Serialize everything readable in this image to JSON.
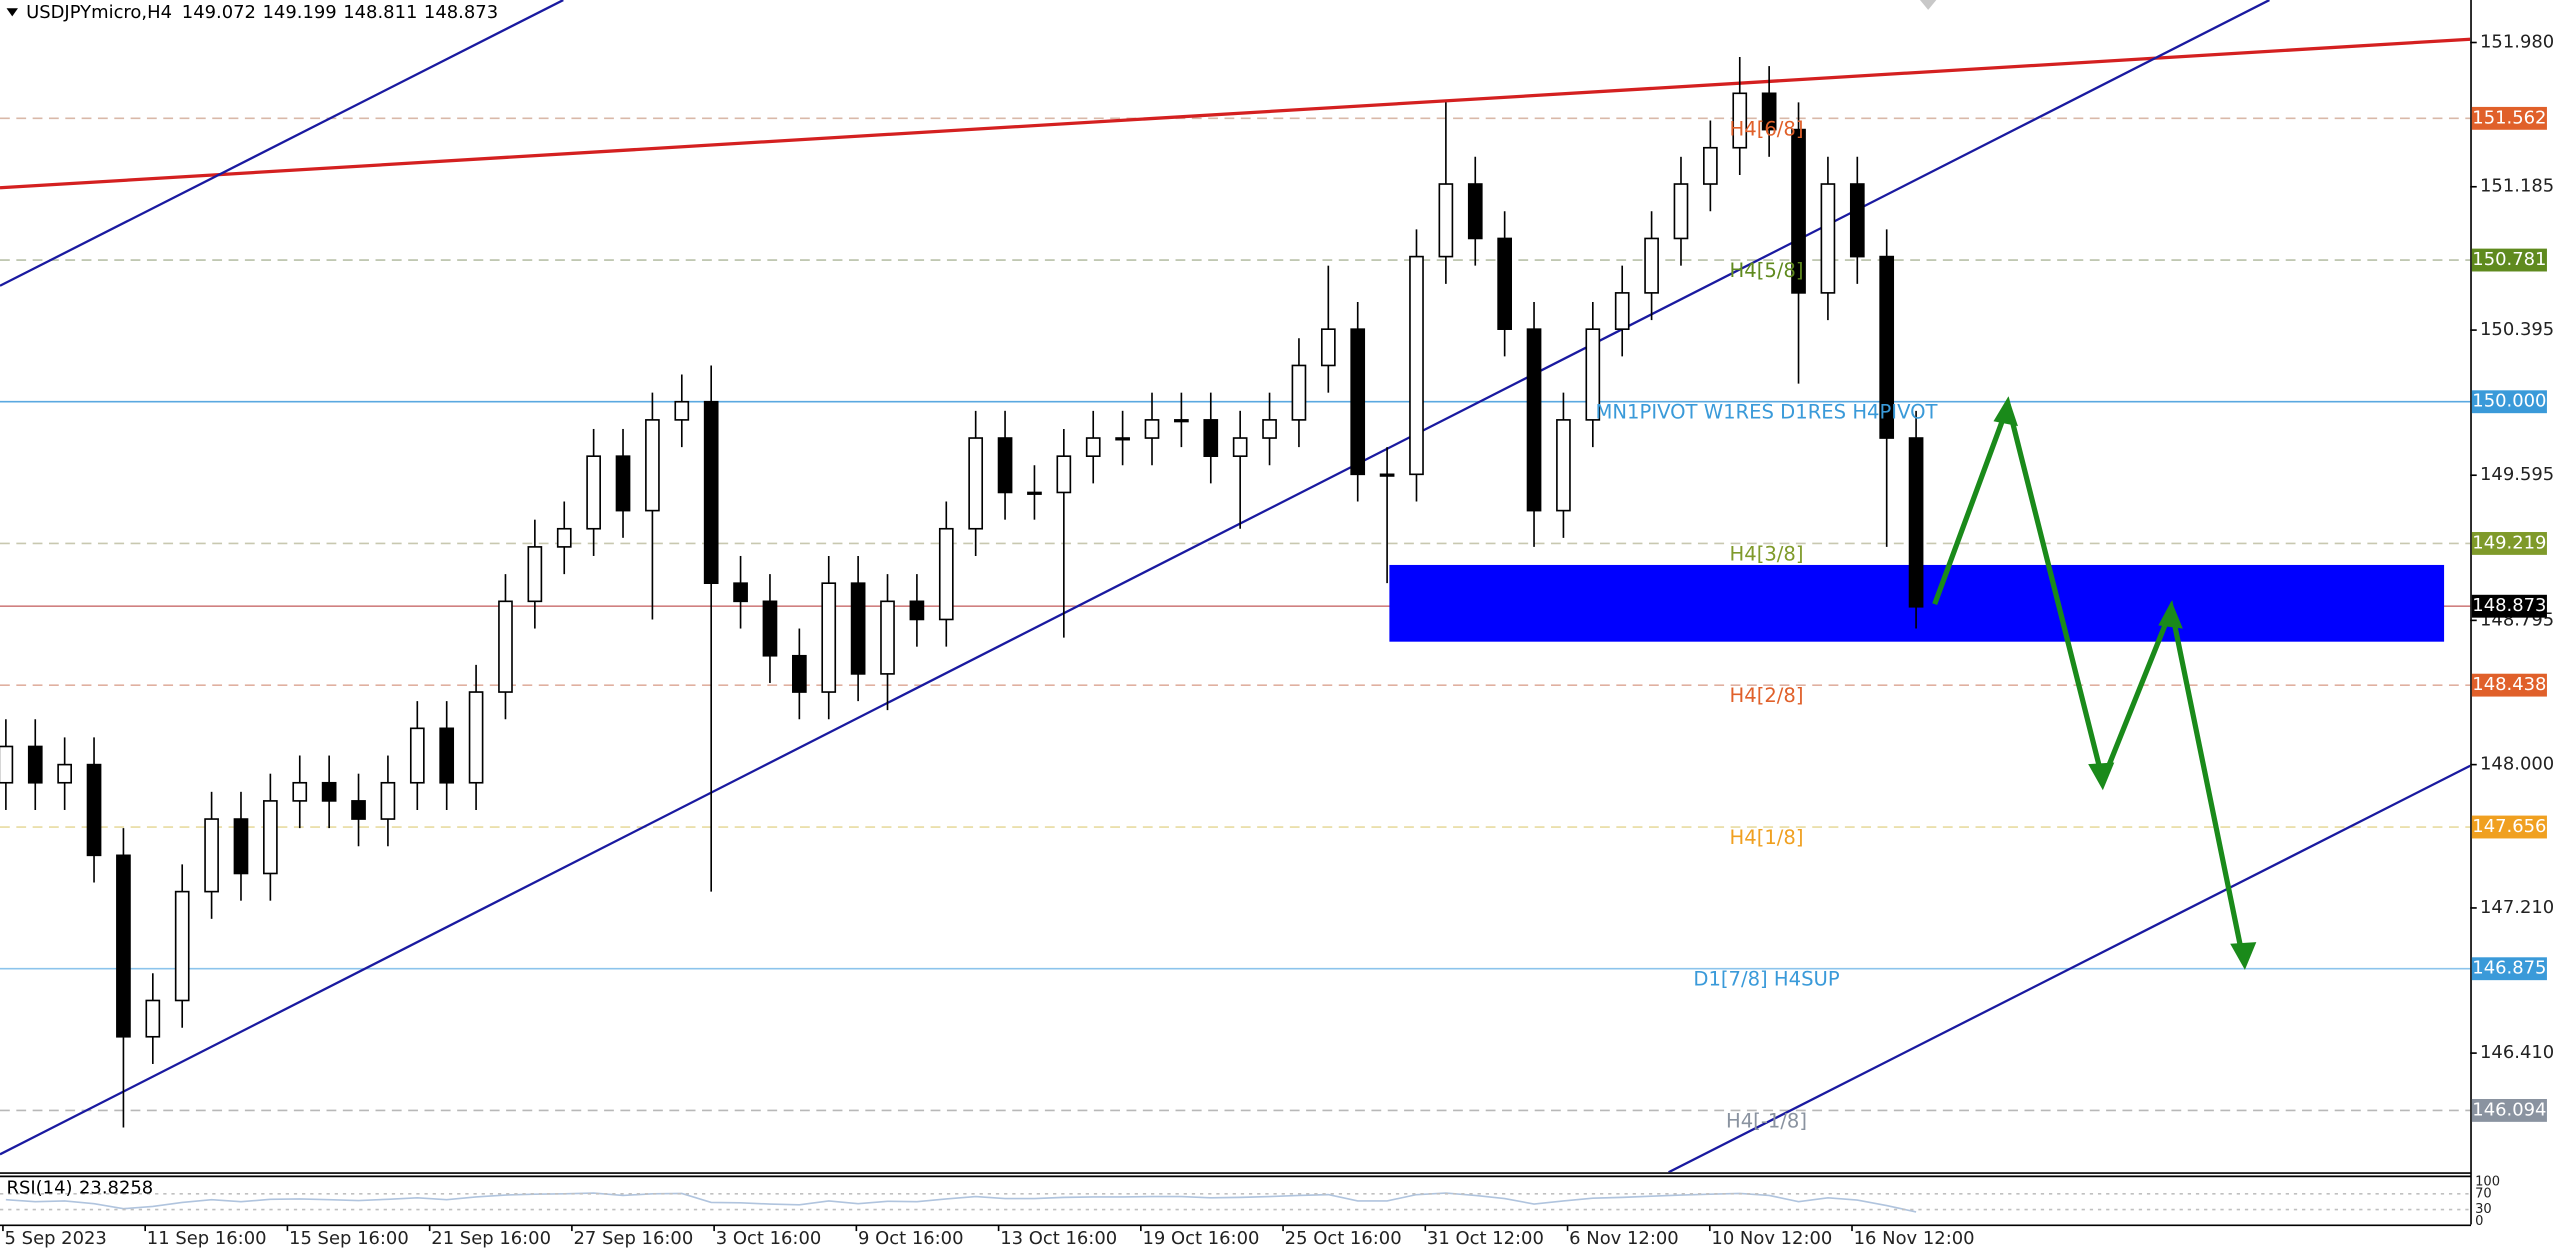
{
  "chart_data": {
    "type": "candlestick",
    "symbol": "USDJPYmicro,H4",
    "quote": [
      149.072,
      149.199,
      148.811,
      148.873
    ],
    "xlim": [
      0,
      420
    ],
    "ylim": [
      145.753,
      152.214
    ],
    "yticks": [
      {
        "value": 151.98,
        "label": "151.980"
      },
      151.185,
      150.395,
      149.595,
      148.795,
      {
        "value": 148,
        "label": "148.000"
      },
      {
        "value": 147.21,
        "label": "147.210"
      },
      {
        "value": 146.41,
        "label": "146.410"
      }
    ],
    "xticks": [
      {
        "value": 0.5,
        "label": "5 Sep 2023"
      },
      {
        "value": 24.7,
        "label": "11 Sep 16:00"
      },
      {
        "value": 48.9,
        "label": "15 Sep 16:00"
      },
      {
        "value": 73.1,
        "label": "21 Sep 16:00"
      },
      {
        "value": 97.3,
        "label": "27 Sep 16:00"
      },
      {
        "value": 121.5,
        "label": "3 Oct 16:00"
      },
      {
        "value": 145.7,
        "label": "9 Oct 16:00"
      },
      {
        "value": 169.9,
        "label": "13 Oct 16:00"
      },
      {
        "value": 194.1,
        "label": "19 Oct 16:00"
      },
      {
        "value": 218.3,
        "label": "25 Oct 16:00"
      },
      {
        "value": 242.5,
        "label": "31 Oct 12:00"
      },
      {
        "value": 266.7,
        "label": "6 Nov 12:00"
      },
      {
        "value": 290.9,
        "label": "10 Nov 12:00"
      },
      {
        "value": 315.1,
        "label": "16 Nov 12:00"
      }
    ],
    "x": [
      1,
      6,
      11,
      16,
      21,
      26,
      31,
      36,
      41,
      46,
      51,
      56,
      61,
      66,
      71,
      76,
      81,
      86,
      91,
      96,
      101,
      106,
      111,
      116,
      121,
      126,
      131,
      136,
      141,
      146,
      151,
      156,
      161,
      166,
      171,
      176,
      181,
      186,
      191,
      196,
      201,
      206,
      211,
      216,
      221,
      226,
      231,
      236,
      241,
      246,
      251,
      256,
      261,
      266,
      271,
      276,
      281,
      286,
      291,
      296,
      301,
      306,
      311,
      316,
      321,
      326
    ],
    "open": [
      147.9,
      148.1,
      147.9,
      148.0,
      147.5,
      146.5,
      146.7,
      147.3,
      147.7,
      147.4,
      147.8,
      147.9,
      147.8,
      147.7,
      147.9,
      148.2,
      147.9,
      148.4,
      148.9,
      149.2,
      149.3,
      149.7,
      149.4,
      149.9,
      150.0,
      149.0,
      148.9,
      148.6,
      148.4,
      149.0,
      148.5,
      148.9,
      148.8,
      149.3,
      149.8,
      149.5,
      149.5,
      149.7,
      149.8,
      149.8,
      149.9,
      149.9,
      149.7,
      149.8,
      149.9,
      150.2,
      150.4,
      149.6,
      149.6,
      150.8,
      151.2,
      150.9,
      150.4,
      149.4,
      149.9,
      150.4,
      150.6,
      150.9,
      151.2,
      151.4,
      151.7,
      151.5,
      150.6,
      151.2,
      150.8,
      149.8
    ],
    "high": [
      148.25,
      148.25,
      148.15,
      148.15,
      147.65,
      146.85,
      147.45,
      147.85,
      147.85,
      147.95,
      148.05,
      148.05,
      147.95,
      148.05,
      148.35,
      148.35,
      148.55,
      149.05,
      149.35,
      149.45,
      149.85,
      149.85,
      150.05,
      150.15,
      150.2,
      149.15,
      149.05,
      148.75,
      149.15,
      149.15,
      149.05,
      149.05,
      149.45,
      149.95,
      149.95,
      149.65,
      149.85,
      149.95,
      149.95,
      150.05,
      150.05,
      150.05,
      149.95,
      150.05,
      150.35,
      150.75,
      150.55,
      149.75,
      150.95,
      151.65,
      151.35,
      151.05,
      150.55,
      150.05,
      150.55,
      150.75,
      151.05,
      151.35,
      151.55,
      151.9,
      151.85,
      151.65,
      151.35,
      151.35,
      150.95,
      149.95
    ],
    "low": [
      147.75,
      147.75,
      147.75,
      147.35,
      146.0,
      146.35,
      146.55,
      147.15,
      147.25,
      147.25,
      147.65,
      147.65,
      147.55,
      147.55,
      147.75,
      147.75,
      147.75,
      148.25,
      148.75,
      149.05,
      149.15,
      149.25,
      148.8,
      149.75,
      147.3,
      148.75,
      148.45,
      148.25,
      148.25,
      148.35,
      148.3,
      148.65,
      148.65,
      149.15,
      149.35,
      149.35,
      148.7,
      149.55,
      149.65,
      149.65,
      149.75,
      149.55,
      149.3,
      149.65,
      149.75,
      150.05,
      149.45,
      149.0,
      149.45,
      150.65,
      150.75,
      150.25,
      149.2,
      149.25,
      149.75,
      150.25,
      150.45,
      150.75,
      151.05,
      151.25,
      151.35,
      150.1,
      150.45,
      150.65,
      149.2,
      148.75
    ],
    "close": [
      148.1,
      147.9,
      148.0,
      147.5,
      146.5,
      146.7,
      147.3,
      147.7,
      147.4,
      147.8,
      147.9,
      147.8,
      147.7,
      147.9,
      148.2,
      147.9,
      148.4,
      148.9,
      149.2,
      149.3,
      149.7,
      149.4,
      149.9,
      150.0,
      149.0,
      148.9,
      148.6,
      148.4,
      149.0,
      148.5,
      148.9,
      148.8,
      149.3,
      149.8,
      149.5,
      149.5,
      149.7,
      149.8,
      149.8,
      149.9,
      149.9,
      149.7,
      149.8,
      149.9,
      150.2,
      150.4,
      149.6,
      149.6,
      150.8,
      151.2,
      150.9,
      150.4,
      149.4,
      149.9,
      150.4,
      150.6,
      150.9,
      151.2,
      151.4,
      151.7,
      151.5,
      150.6,
      151.2,
      150.8,
      149.8,
      148.87
    ],
    "levels": [
      {
        "value": 151.562,
        "text": "H4[6/8]",
        "color": "#e0602a",
        "line_color": "#d9b8a8",
        "dash": true
      },
      {
        "value": 150.781,
        "text": "H4[5/8]",
        "color": "#5f8a1e",
        "line_color": "#b8c0a8",
        "dash": true
      },
      {
        "value": 150.0,
        "label": "150.000",
        "text": "MN1PIVOT W1RES D1RES H4PIVOT",
        "color": "#3a9ad9",
        "line_color": "#5aa8e0",
        "dash": false
      },
      {
        "value": 149.219,
        "text": "H4[3/8]",
        "color": "#7f9a2a",
        "line_color": "#c8c8b0",
        "dash": true
      },
      {
        "value": 148.438,
        "text": "H4[2/8]",
        "color": "#e0602a",
        "line_color": "#e0b0a0",
        "dash": true
      },
      {
        "value": 147.656,
        "text": "H4[1/8]",
        "color": "#f0a020",
        "line_color": "#e8dca0",
        "dash": true
      },
      {
        "value": 146.875,
        "text": "D1[7/8] H4SUP",
        "color": "#3a9ad9",
        "line_color": "#8cc4ec",
        "dash": false
      },
      {
        "value": 146.094,
        "text": "H4[-1/8]",
        "color": "#8a93a0",
        "line_color": "#b8b8b8",
        "dash": true
      }
    ],
    "indicator": {
      "name": "RSI(14)",
      "ylim": [
        0,
        100
      ],
      "yticks": [
        0,
        30,
        70,
        100
      ],
      "values": [
        55,
        50,
        52,
        45,
        32,
        38,
        48,
        55,
        50,
        56,
        57,
        55,
        53,
        56,
        60,
        55,
        62,
        67,
        69,
        70,
        72,
        66,
        70,
        71,
        48,
        47,
        44,
        42,
        52,
        45,
        51,
        50,
        57,
        63,
        58,
        58,
        61,
        62,
        62,
        63,
        63,
        60,
        61,
        63,
        66,
        68,
        52,
        52,
        68,
        72,
        66,
        58,
        44,
        52,
        59,
        61,
        64,
        67,
        69,
        71,
        66,
        50,
        60,
        54,
        40,
        23.8258
      ]
    }
  }
}
